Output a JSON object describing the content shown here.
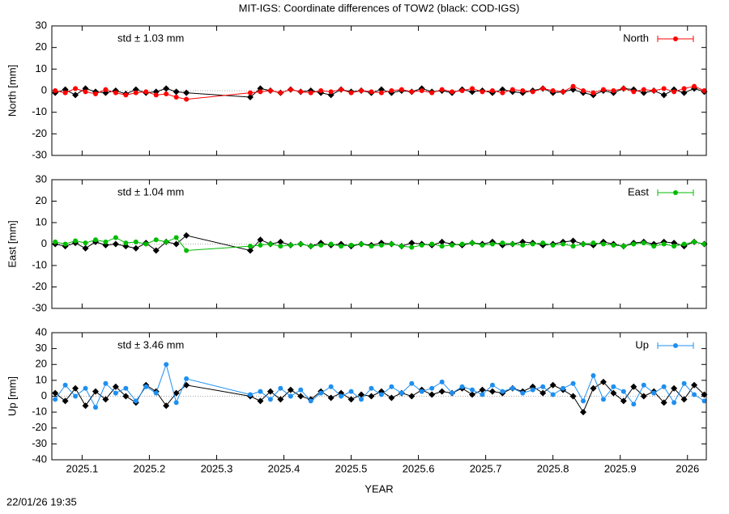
{
  "title": "MIT-IGS: Coordinate differences of TOW2 (black: COD-IGS)",
  "timestamp": "22/01/26 19:35",
  "chart_data": [
    {
      "type": "line",
      "ylabel": "North [mm]",
      "annotation": "std ± 1.03 mm",
      "legend": "top-right",
      "xlim": [
        2025.055,
        2026.028
      ],
      "ylim": [
        -30,
        30
      ],
      "yticks": [
        -30,
        -20,
        -10,
        0,
        10,
        20,
        30
      ],
      "x": [
        2025.06,
        2025.075,
        2025.09,
        2025.105,
        2025.12,
        2025.135,
        2025.15,
        2025.165,
        2025.18,
        2025.195,
        2025.21,
        2025.225,
        2025.24,
        2025.255,
        2025.35,
        2025.365,
        2025.38,
        2025.395,
        2025.41,
        2025.425,
        2025.44,
        2025.455,
        2025.47,
        2025.485,
        2025.5,
        2025.515,
        2025.53,
        2025.545,
        2025.56,
        2025.575,
        2025.59,
        2025.605,
        2025.62,
        2025.635,
        2025.65,
        2025.665,
        2025.68,
        2025.695,
        2025.71,
        2025.725,
        2025.74,
        2025.755,
        2025.77,
        2025.785,
        2025.8,
        2025.815,
        2025.83,
        2025.845,
        2025.86,
        2025.875,
        2025.89,
        2025.905,
        2025.92,
        2025.935,
        2025.95,
        2025.965,
        2025.98,
        2025.995,
        2026.01,
        2026.025
      ],
      "series": [
        {
          "color": "#000000",
          "values": [
            -1,
            0.5,
            -2,
            1,
            -0.5,
            -1,
            0,
            -1.5,
            0.5,
            -1,
            -0.5,
            1,
            -0.5,
            -1,
            -3,
            1,
            0,
            -1,
            0.5,
            -0.5,
            0,
            -1,
            -2,
            0.5,
            -0.5,
            0,
            -1,
            0.5,
            -1,
            0,
            -0.5,
            1,
            -0.5,
            0,
            -1,
            0.5,
            -0.5,
            0,
            -1,
            0.5,
            -0.5,
            -1,
            0,
            1,
            -1,
            -0.5,
            0.5,
            -1,
            -2,
            0,
            -1,
            1,
            0.5,
            -1,
            0,
            -2,
            0.5,
            -1,
            1,
            -0.5
          ]
        },
        {
          "name": "North",
          "color": "#ff0000",
          "values": [
            0,
            -1,
            1,
            -0.5,
            -1.5,
            0.5,
            -1,
            -2,
            -1,
            -0.5,
            -2,
            -1.5,
            -3,
            -4,
            -1,
            -0.5,
            0,
            -1,
            0.5,
            -0.5,
            -1,
            0,
            -0.5,
            0.5,
            -1,
            0,
            -0.5,
            -1,
            0,
            0.5,
            -0.5,
            0,
            -1,
            0.5,
            -0.5,
            0,
            1,
            -0.5,
            0,
            -1,
            0.5,
            0,
            -0.5,
            1,
            0,
            -0.5,
            2,
            0,
            -1,
            0.5,
            0,
            1,
            -0.5,
            0.5,
            0,
            1,
            -0.5,
            1,
            2,
            0
          ]
        }
      ]
    },
    {
      "type": "line",
      "ylabel": "East [mm]",
      "annotation": "std ± 1.04 mm",
      "legend": "top-right",
      "xlim": [
        2025.055,
        2026.028
      ],
      "ylim": [
        -30,
        30
      ],
      "yticks": [
        -30,
        -20,
        -10,
        0,
        10,
        20,
        30
      ],
      "x": [
        2025.06,
        2025.075,
        2025.09,
        2025.105,
        2025.12,
        2025.135,
        2025.15,
        2025.165,
        2025.18,
        2025.195,
        2025.21,
        2025.225,
        2025.24,
        2025.255,
        2025.35,
        2025.365,
        2025.38,
        2025.395,
        2025.41,
        2025.425,
        2025.44,
        2025.455,
        2025.47,
        2025.485,
        2025.5,
        2025.515,
        2025.53,
        2025.545,
        2025.56,
        2025.575,
        2025.59,
        2025.605,
        2025.62,
        2025.635,
        2025.65,
        2025.665,
        2025.68,
        2025.695,
        2025.71,
        2025.725,
        2025.74,
        2025.755,
        2025.77,
        2025.785,
        2025.8,
        2025.815,
        2025.83,
        2025.845,
        2025.86,
        2025.875,
        2025.89,
        2025.905,
        2025.92,
        2025.935,
        2025.95,
        2025.965,
        2025.98,
        2025.995,
        2026.01,
        2026.025
      ],
      "series": [
        {
          "color": "#000000",
          "values": [
            0,
            -1,
            0.5,
            -2,
            1,
            -0.5,
            0,
            -1,
            -2,
            0.5,
            -3,
            1,
            0,
            4,
            -3,
            2,
            0,
            1,
            -0.5,
            0,
            -1,
            0.5,
            -0.5,
            0,
            -1,
            0,
            -0.5,
            0.5,
            0,
            -1,
            0.5,
            0,
            -0.5,
            1,
            0,
            -0.5,
            0.5,
            0,
            1,
            -0.5,
            0,
            1,
            0.5,
            -0.5,
            0,
            1,
            1.5,
            0,
            -0.5,
            1,
            0,
            -1,
            0.5,
            1,
            0,
            1,
            0.5,
            -1,
            1,
            0
          ]
        },
        {
          "name": "East",
          "color": "#00bb00",
          "values": [
            1,
            0,
            1.5,
            0.5,
            2,
            1,
            3,
            0.5,
            1,
            0,
            2,
            1,
            3,
            -3,
            -1,
            -0.5,
            0,
            -1,
            -0.5,
            0,
            -1,
            -0.5,
            0,
            -1,
            -0.5,
            0,
            -1,
            -0.5,
            0,
            -1,
            -1.5,
            -0.5,
            0,
            -1,
            -0.5,
            0,
            0.5,
            -0.5,
            0,
            0.5,
            0,
            -0.5,
            0,
            0.5,
            -0.5,
            0,
            -1,
            0,
            0.5,
            0,
            -0.5,
            -1,
            0,
            0.5,
            -1,
            0,
            -1,
            0,
            1,
            0
          ]
        }
      ]
    },
    {
      "type": "line",
      "ylabel": "Up [mm]",
      "annotation": "std ± 3.46 mm",
      "legend": "top-right",
      "xlabel": "YEAR",
      "xlim": [
        2025.055,
        2026.028
      ],
      "ylim": [
        -40,
        40
      ],
      "yticks": [
        -40,
        -30,
        -20,
        -10,
        0,
        10,
        20,
        30,
        40
      ],
      "xticks": [
        2025.1,
        2025.2,
        2025.3,
        2025.4,
        2025.5,
        2025.6,
        2025.7,
        2025.8,
        2025.9,
        2026
      ],
      "x": [
        2025.06,
        2025.075,
        2025.09,
        2025.105,
        2025.12,
        2025.135,
        2025.15,
        2025.165,
        2025.18,
        2025.195,
        2025.21,
        2025.225,
        2025.24,
        2025.255,
        2025.35,
        2025.365,
        2025.38,
        2025.395,
        2025.41,
        2025.425,
        2025.44,
        2025.455,
        2025.47,
        2025.485,
        2025.5,
        2025.515,
        2025.53,
        2025.545,
        2025.56,
        2025.575,
        2025.59,
        2025.605,
        2025.62,
        2025.635,
        2025.65,
        2025.665,
        2025.68,
        2025.695,
        2025.71,
        2025.725,
        2025.74,
        2025.755,
        2025.77,
        2025.785,
        2025.8,
        2025.815,
        2025.83,
        2025.845,
        2025.86,
        2025.875,
        2025.89,
        2025.905,
        2025.92,
        2025.935,
        2025.95,
        2025.965,
        2025.98,
        2025.995,
        2026.01,
        2026.025
      ],
      "series": [
        {
          "color": "#000000",
          "values": [
            2,
            -3,
            5,
            -6,
            3,
            -2,
            6,
            0,
            -4,
            7,
            3,
            -6,
            2,
            7,
            0,
            -3,
            3,
            -2,
            4,
            0,
            -2,
            3,
            -1,
            2,
            -2,
            1,
            0,
            3,
            -1,
            2,
            0,
            4,
            1,
            3,
            2,
            5,
            1,
            4,
            3,
            2,
            5,
            3,
            6,
            2,
            7,
            4,
            0,
            -10,
            5,
            9,
            2,
            -3,
            6,
            0,
            3,
            -4,
            5,
            -2,
            7,
            1
          ]
        },
        {
          "name": "Up",
          "color": "#1e8ff0",
          "values": [
            -2,
            7,
            0,
            5,
            -7,
            8,
            2,
            5,
            -3,
            6,
            2,
            20,
            -4,
            11,
            1,
            3,
            -2,
            5,
            0,
            4,
            -3,
            2,
            6,
            0,
            3,
            -2,
            5,
            1,
            6,
            2,
            8,
            3,
            5,
            9,
            2,
            6,
            4,
            1,
            7,
            3,
            5,
            2,
            4,
            6,
            1,
            5,
            8,
            -3,
            13,
            -2,
            6,
            3,
            -5,
            7,
            2,
            6,
            -4,
            8,
            1,
            -3
          ]
        }
      ]
    }
  ]
}
